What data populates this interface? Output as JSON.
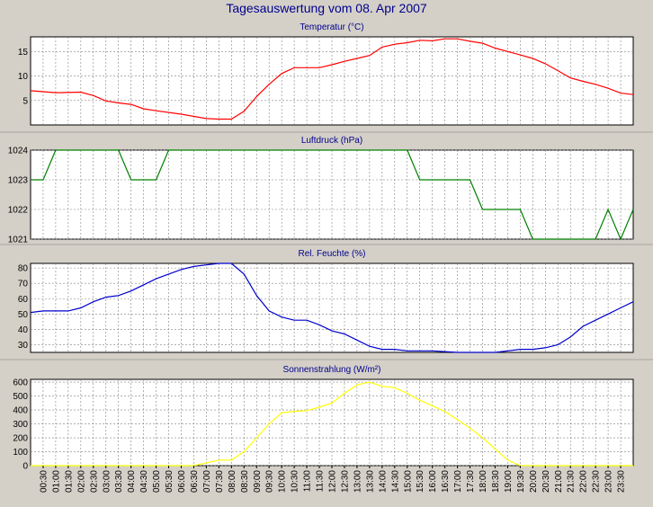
{
  "title": "Tagesauswertung vom 08. Apr 2007",
  "time_labels": [
    "00:30",
    "01:00",
    "01:30",
    "02:00",
    "02:30",
    "03:00",
    "03:30",
    "04:00",
    "04:30",
    "05:00",
    "05:30",
    "06:00",
    "06:30",
    "07:00",
    "07:30",
    "08:00",
    "08:30",
    "09:00",
    "09:30",
    "10:00",
    "10:30",
    "11:00",
    "11:30",
    "12:00",
    "12:30",
    "13:00",
    "13:30",
    "14:00",
    "14:30",
    "15:00",
    "15:30",
    "16:00",
    "16:30",
    "17:00",
    "17:30",
    "18:00",
    "18:30",
    "19:00",
    "19:30",
    "20:00",
    "20:30",
    "21:00",
    "21:30",
    "22:00",
    "22:30",
    "23:00",
    "23:30"
  ],
  "colors": {
    "background": "#d4d0c8",
    "plot": "#ffffff",
    "title": "#00008b",
    "grid": "#808080"
  },
  "chart_data": [
    {
      "type": "line",
      "title": "Temperatur (°C)",
      "color": "#ff0000",
      "xlim": [
        "00:00",
        "24:00"
      ],
      "ylim": [
        0,
        18
      ],
      "yticks": [
        5,
        10,
        15
      ],
      "grid": true,
      "x": [
        "00:00",
        "01:00",
        "02:00",
        "02:30",
        "03:00",
        "03:30",
        "04:00",
        "04:30",
        "05:00",
        "06:00",
        "07:00",
        "07:30",
        "08:00",
        "08:30",
        "09:00",
        "09:30",
        "10:00",
        "10:30",
        "11:00",
        "11:30",
        "12:00",
        "12:30",
        "13:00",
        "13:30",
        "14:00",
        "14:30",
        "15:00",
        "15:30",
        "16:00",
        "16:30",
        "17:00",
        "17:30",
        "18:00",
        "18:30",
        "19:00",
        "19:30",
        "20:00",
        "20:30",
        "21:00",
        "21:30",
        "22:00",
        "22:30",
        "23:00",
        "23:30",
        "24:00"
      ],
      "values": [
        7.0,
        6.6,
        6.7,
        6.0,
        4.9,
        4.5,
        4.2,
        3.3,
        2.9,
        2.2,
        1.3,
        1.2,
        1.2,
        2.8,
        5.8,
        8.3,
        10.5,
        11.7,
        11.7,
        11.7,
        12.3,
        13.0,
        13.6,
        14.2,
        15.9,
        16.5,
        16.8,
        17.3,
        17.2,
        17.6,
        17.6,
        17.1,
        16.7,
        15.7,
        15.0,
        14.3,
        13.6,
        12.5,
        11.1,
        9.6,
        8.9,
        8.3,
        7.5,
        6.5,
        6.2
      ]
    },
    {
      "type": "line",
      "title": "Luftdruck (hPa)",
      "color": "#008000",
      "xlim": [
        "00:00",
        "24:00"
      ],
      "ylim": [
        1021,
        1024
      ],
      "yticks": [
        1021,
        1022,
        1023,
        1024
      ],
      "grid": true,
      "x": [
        "00:00",
        "00:30",
        "01:00",
        "03:30",
        "04:00",
        "05:00",
        "05:30",
        "15:00",
        "15:30",
        "17:00",
        "17:30",
        "18:00",
        "19:30",
        "20:00",
        "22:30",
        "23:00",
        "23:30",
        "24:00"
      ],
      "values": [
        1023,
        1023,
        1024,
        1024,
        1023,
        1023,
        1024,
        1024,
        1023,
        1023,
        1023,
        1022,
        1022,
        1021,
        1021,
        1022,
        1021,
        1022
      ]
    },
    {
      "type": "line",
      "title": "Rel. Feuchte (%)",
      "color": "#0000cd",
      "xlim": [
        "00:00",
        "24:00"
      ],
      "ylim": [
        25,
        83
      ],
      "yticks": [
        30,
        40,
        50,
        60,
        70,
        80
      ],
      "grid": true,
      "x": [
        "00:00",
        "00:30",
        "01:00",
        "01:30",
        "02:00",
        "02:30",
        "03:00",
        "03:30",
        "04:00",
        "04:30",
        "05:00",
        "05:30",
        "06:00",
        "06:30",
        "07:00",
        "07:30",
        "08:00",
        "08:30",
        "09:00",
        "09:30",
        "10:00",
        "10:30",
        "11:00",
        "11:30",
        "12:00",
        "12:30",
        "13:00",
        "13:30",
        "14:00",
        "14:30",
        "15:00",
        "16:00",
        "17:00",
        "17:30",
        "18:00",
        "18:30",
        "19:00",
        "19:30",
        "20:00",
        "20:30",
        "21:00",
        "21:30",
        "22:00",
        "22:30",
        "23:00",
        "23:30",
        "24:00"
      ],
      "values": [
        51,
        52,
        52,
        52,
        54,
        58,
        61,
        62,
        65,
        69,
        73,
        76,
        79,
        81,
        82,
        83,
        83,
        76,
        62,
        52,
        48,
        46,
        46,
        43,
        39,
        37,
        33,
        29,
        27,
        27,
        26,
        26,
        25,
        25,
        25,
        25,
        26,
        27,
        27,
        28,
        30,
        35,
        42,
        46,
        50,
        54,
        58
      ]
    },
    {
      "type": "line",
      "title": "Sonnenstrahlung (W/m²)",
      "color": "#ffff00",
      "xlim": [
        "00:00",
        "24:00"
      ],
      "ylim": [
        0,
        620
      ],
      "yticks": [
        0,
        100,
        200,
        300,
        400,
        500,
        600
      ],
      "grid": true,
      "x": [
        "00:00",
        "06:30",
        "07:00",
        "07:30",
        "08:00",
        "08:30",
        "09:00",
        "09:30",
        "10:00",
        "10:30",
        "11:00",
        "11:30",
        "12:00",
        "12:30",
        "13:00",
        "13:30",
        "14:00",
        "14:30",
        "15:00",
        "15:30",
        "16:00",
        "16:30",
        "17:00",
        "17:30",
        "18:00",
        "18:30",
        "19:00",
        "19:30",
        "20:00",
        "24:00"
      ],
      "values": [
        0,
        0,
        20,
        40,
        40,
        100,
        200,
        300,
        380,
        390,
        395,
        420,
        450,
        520,
        580,
        600,
        570,
        560,
        520,
        470,
        430,
        390,
        330,
        270,
        200,
        120,
        40,
        0,
        0,
        0
      ]
    }
  ]
}
